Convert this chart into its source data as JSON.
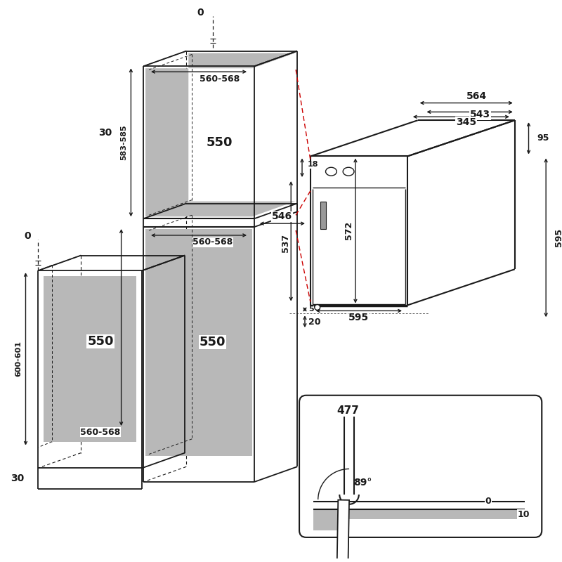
{
  "bg": "#ffffff",
  "lc": "#1a1a1a",
  "gc": "#b8b8b8",
  "rc": "#cc0000",
  "dims": {
    "zero_top": "0",
    "zero_left": "0",
    "gap30_top": "30",
    "gap30_bot": "30",
    "upper_w": "560-568",
    "upper_d": "583-585",
    "upper_inner": "550",
    "lower_w": "560-568",
    "lower_inner": "550",
    "lower_h": "600-601",
    "w564": "564",
    "w543": "543",
    "d546": "546",
    "d345": "345",
    "h95": "95",
    "h18": "18",
    "h537": "537",
    "h572": "572",
    "h595_right": "595",
    "gap5": "5",
    "gap20": "20",
    "fw595": "595",
    "door477": "477",
    "angle89": "89°",
    "d0": "0",
    "d10": "10"
  }
}
